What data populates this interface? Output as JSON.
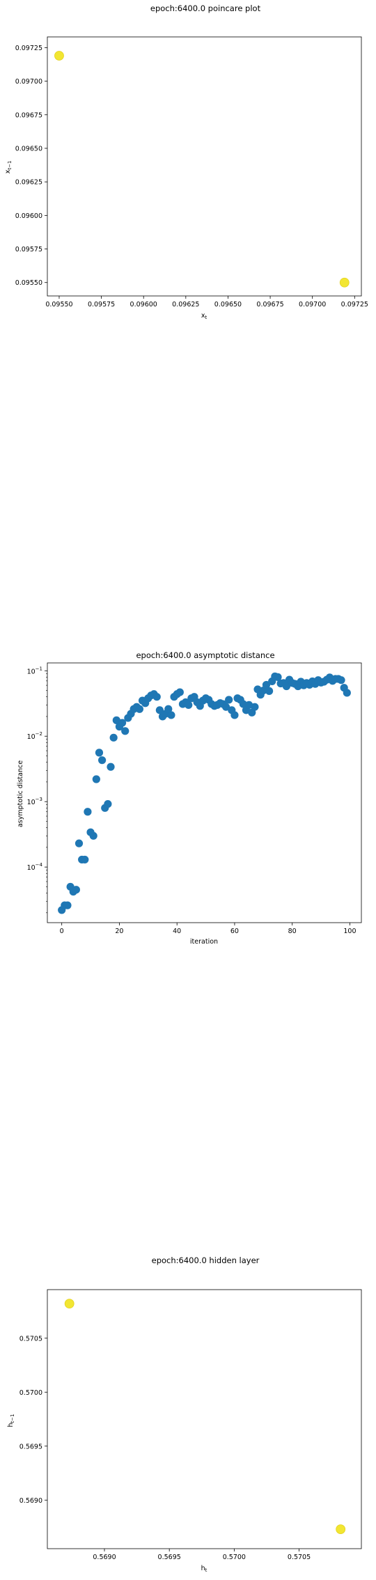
{
  "chart_data": [
    {
      "type": "scatter",
      "title": "epoch:6400.0 poincare plot",
      "xlabel": "x_t",
      "ylabel": "x_{t-1}",
      "xlim": [
        0.09543,
        0.09729
      ],
      "ylim": [
        0.0954,
        0.09733
      ],
      "x_ticks": [
        "0.09550",
        "0.09575",
        "0.09600",
        "0.09625",
        "0.09650",
        "0.09675",
        "0.09700",
        "0.09725"
      ],
      "x_tick_values": [
        0.0955,
        0.09575,
        0.096,
        0.09625,
        0.0965,
        0.09675,
        0.097,
        0.09725
      ],
      "y_ticks": [
        "0.09550",
        "0.09575",
        "0.09600",
        "0.09625",
        "0.09650",
        "0.09675",
        "0.09700",
        "0.09725"
      ],
      "y_tick_values": [
        0.0955,
        0.09575,
        0.096,
        0.09625,
        0.0965,
        0.09675,
        0.097,
        0.09725
      ],
      "color": "#f2e632",
      "points": [
        {
          "x": 0.0955,
          "y": 0.09719
        },
        {
          "x": 0.09719,
          "y": 0.0955
        }
      ]
    },
    {
      "type": "scatter",
      "title": "epoch:6400.0 asymptotic distance",
      "xlabel": "iteration",
      "ylabel": "asymptotic distance",
      "scale_y": "log",
      "xlim": [
        -5,
        104
      ],
      "ylim_exp": [
        -4.85,
        -0.88
      ],
      "x_ticks": [
        "0",
        "20",
        "40",
        "60",
        "80",
        "100"
      ],
      "x_tick_values": [
        0,
        20,
        40,
        60,
        80,
        100
      ],
      "y_ticks": [
        {
          "base": "10",
          "exp": "−1",
          "exp_value": -1
        },
        {
          "base": "10",
          "exp": "−2",
          "exp_value": -2
        },
        {
          "base": "10",
          "exp": "−3",
          "exp_value": -3
        },
        {
          "base": "10",
          "exp": "−4",
          "exp_value": -4
        }
      ],
      "color": "#1f77b4",
      "values": [
        2.2e-05,
        2.6e-05,
        2.6e-05,
        5e-05,
        4.2e-05,
        4.5e-05,
        0.00023,
        0.00013,
        0.00013,
        0.0007,
        0.00034,
        0.0003,
        0.0022,
        0.0056,
        0.0043,
        0.0008,
        0.00092,
        0.0034,
        0.0095,
        0.0175,
        0.014,
        0.016,
        0.012,
        0.019,
        0.022,
        0.026,
        0.028,
        0.026,
        0.035,
        0.032,
        0.038,
        0.042,
        0.044,
        0.04,
        0.025,
        0.02,
        0.022,
        0.026,
        0.021,
        0.04,
        0.044,
        0.047,
        0.031,
        0.033,
        0.03,
        0.038,
        0.04,
        0.033,
        0.029,
        0.035,
        0.038,
        0.036,
        0.031,
        0.029,
        0.03,
        0.032,
        0.031,
        0.028,
        0.036,
        0.025,
        0.021,
        0.038,
        0.036,
        0.031,
        0.025,
        0.03,
        0.023,
        0.028,
        0.052,
        0.043,
        0.05,
        0.061,
        0.049,
        0.069,
        0.082,
        0.08,
        0.064,
        0.065,
        0.058,
        0.073,
        0.065,
        0.063,
        0.058,
        0.068,
        0.06,
        0.065,
        0.061,
        0.069,
        0.063,
        0.072,
        0.066,
        0.068,
        0.073,
        0.079,
        0.07,
        0.075,
        0.075,
        0.072,
        0.055,
        0.046
      ]
    },
    {
      "type": "scatter",
      "title": "epoch:6400.0 hidden layer",
      "xlabel": "h_t",
      "ylabel": "h_{t-1}",
      "xlim": [
        0.56856,
        0.57098
      ],
      "ylim": [
        0.56855,
        0.57095
      ],
      "x_ticks": [
        "0.5690",
        "0.5695",
        "0.5700",
        "0.5705"
      ],
      "x_tick_values": [
        0.569,
        0.5695,
        0.57,
        0.5705
      ],
      "y_ticks": [
        "0.5690",
        "0.5695",
        "0.5700",
        "0.5705"
      ],
      "y_tick_values": [
        0.569,
        0.5695,
        0.57,
        0.5705
      ],
      "color": "#f2e632",
      "points": [
        {
          "x": 0.56873,
          "y": 0.57082
        },
        {
          "x": 0.57082,
          "y": 0.56873
        }
      ]
    }
  ]
}
